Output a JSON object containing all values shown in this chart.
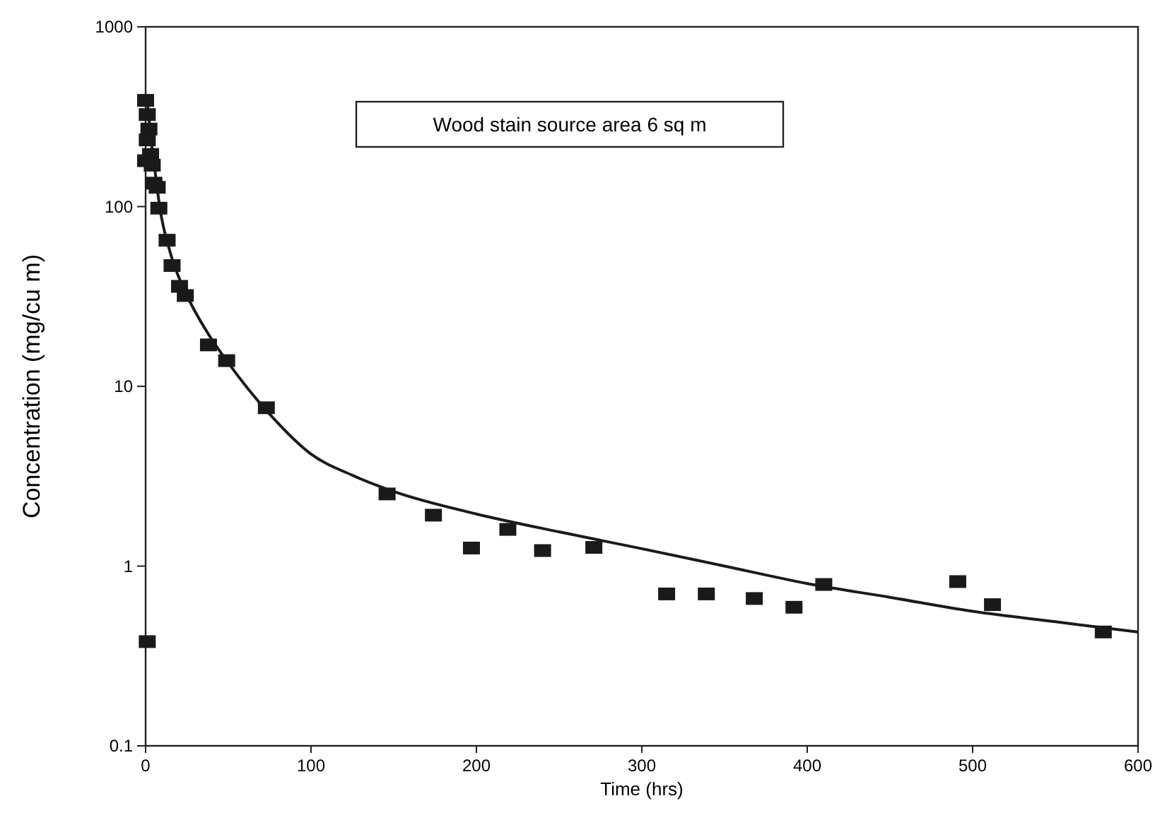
{
  "chart_data": {
    "type": "scatter",
    "xlabel": "Time (hrs)",
    "ylabel": "Concentration (mg/cu m)",
    "log": "y",
    "xlim": [
      0,
      600
    ],
    "xticks": [
      0,
      100,
      200,
      300,
      400,
      500,
      600
    ],
    "ylim": [
      0.1,
      1000
    ],
    "yticks": [
      0.1,
      1,
      10,
      100,
      1000
    ],
    "grid": false,
    "annotations": [
      "Wood stain source area 6 sq m"
    ],
    "series": [
      {
        "color": "#1a1a1a",
        "marker": "square",
        "x": [
          1,
          0,
          1,
          2,
          1,
          3,
          0,
          4,
          5,
          7,
          8,
          13,
          16,
          20.5,
          24,
          38,
          49,
          73,
          146,
          174,
          197,
          219,
          240,
          271,
          315,
          339,
          368,
          392,
          410,
          491,
          512,
          579
        ],
        "values": [
          0.38,
          390,
          325,
          270,
          235,
          195,
          180,
          170,
          135,
          128,
          98,
          65,
          47,
          36,
          32,
          17,
          13.9,
          7.6,
          2.52,
          1.92,
          1.26,
          1.6,
          1.22,
          1.27,
          0.7,
          0.7,
          0.66,
          0.59,
          0.79,
          0.82,
          0.61,
          0.43
        ]
      },
      {
        "type": "line",
        "color": "#1a1a1a",
        "marker": "none",
        "line_style": "solid",
        "x": [
          1,
          3,
          6,
          8.5,
          15,
          25,
          38,
          50,
          75,
          100,
          125,
          150,
          200,
          250,
          300,
          350,
          400,
          450,
          500,
          550,
          600
        ],
        "values": [
          400,
          250,
          150,
          100,
          55,
          32,
          19.5,
          13.5,
          7,
          4.2,
          3.2,
          2.6,
          1.95,
          1.55,
          1.25,
          1,
          0.8,
          0.67,
          0.56,
          0.49,
          0.43
        ]
      }
    ]
  }
}
